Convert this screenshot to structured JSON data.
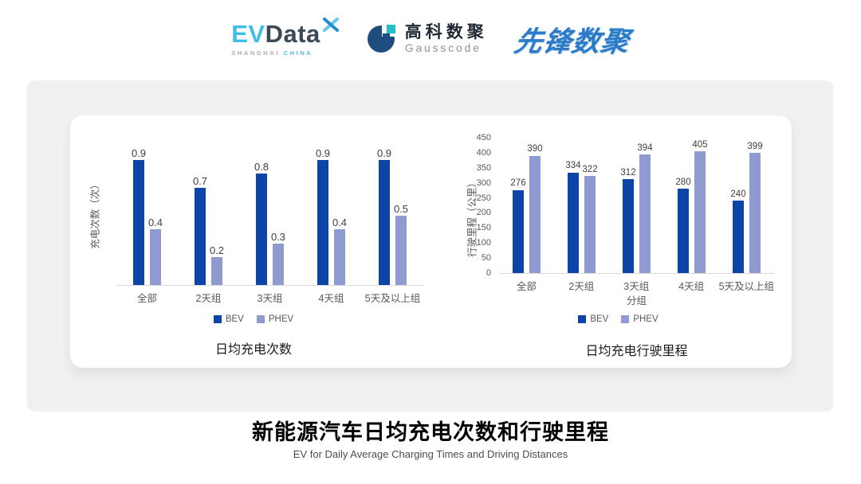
{
  "header": {
    "evdata": {
      "ev": "EV",
      "data": "Data",
      "sub_left": "SHANGHAI",
      "sub_right": "CHINA"
    },
    "gausscode": {
      "cn": "高科数聚",
      "en": "Gausscode"
    },
    "pioneer": {
      "text": "先锋数聚"
    }
  },
  "footer": {
    "title": "新能源汽车日均充电次数和行驶里程",
    "subtitle": "EV for Daily Average Charging Times and Driving Distances"
  },
  "colors": {
    "bev": "#0C44A8",
    "phev": "#8F9BD0",
    "axis_line": "#D9D9D9",
    "panel_bg": "#F0F0F0",
    "logo_blue": "#41BEE8",
    "pioneer_blue": "#2C7BC9"
  },
  "chart_data": [
    {
      "type": "bar",
      "title": "日均充电次数",
      "ylabel": "充电次数（次）",
      "xlabel": "",
      "categories": [
        "全部",
        "2天组",
        "3天组",
        "4天组",
        "5天及以上组"
      ],
      "series": [
        {
          "name": "BEV",
          "color": "#0C44A8",
          "values": [
            0.9,
            0.7,
            0.8,
            0.9,
            0.9
          ]
        },
        {
          "name": "PHEV",
          "color": "#8F9BD0",
          "values": [
            0.4,
            0.2,
            0.3,
            0.4,
            0.5
          ]
        }
      ],
      "ylim": [
        0,
        1
      ],
      "yticks": [],
      "grid": false,
      "legend_position": "bottom",
      "legend": [
        "BEV",
        "PHEV"
      ]
    },
    {
      "type": "bar",
      "title": "日均充电行驶里程",
      "ylabel": "行驶里程（公里）",
      "xlabel": "分组",
      "categories": [
        "全部",
        "2天组",
        "3天组",
        "4天组",
        "5天及以上组"
      ],
      "series": [
        {
          "name": "BEV",
          "color": "#0C44A8",
          "values": [
            276,
            334,
            312,
            280,
            240
          ]
        },
        {
          "name": "PHEV",
          "color": "#8F9BD0",
          "values": [
            390,
            322,
            394,
            405,
            399
          ]
        }
      ],
      "ylim": [
        0,
        450
      ],
      "yticks": [
        0,
        50,
        100,
        150,
        200,
        250,
        300,
        350,
        400,
        450
      ],
      "grid": false,
      "legend_position": "bottom",
      "legend": [
        "BEV",
        "PHEV"
      ]
    }
  ]
}
